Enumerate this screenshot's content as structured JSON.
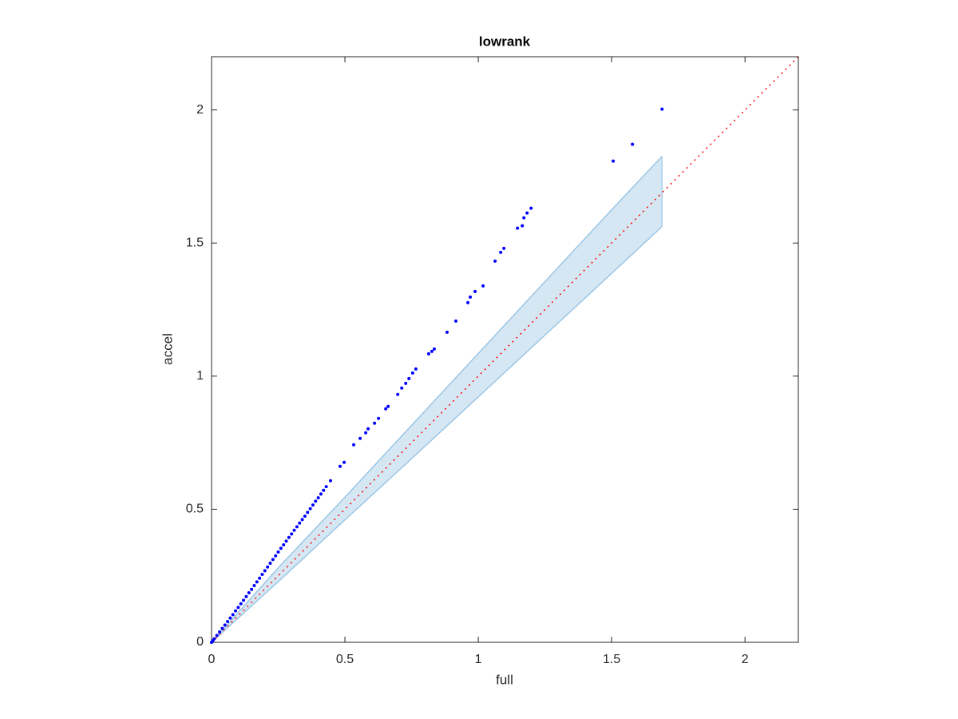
{
  "chart_data": {
    "type": "scatter",
    "title": "lowrank",
    "x_label": "full",
    "y_label": "accel",
    "xlim": [
      0,
      2.2
    ],
    "ylim": [
      0,
      2.2
    ],
    "xticks": [
      0,
      0.5,
      1,
      1.5,
      2
    ],
    "yticks": [
      0,
      0.5,
      1,
      1.5,
      2
    ],
    "box": true,
    "series": [
      {
        "color": "#0000ff",
        "x": [
          0,
          0.005,
          0.01,
          0.02,
          0.03,
          0.04,
          0.05,
          0.06,
          0.07,
          0.08,
          0.09,
          0.1,
          0.11,
          0.12,
          0.13,
          0.14,
          0.15,
          0.16,
          0.17,
          0.18,
          0.19,
          0.2,
          0.21,
          0.22,
          0.23,
          0.24,
          0.25,
          0.26,
          0.27,
          0.28,
          0.29,
          0.3,
          0.31,
          0.32,
          0.33,
          0.34,
          0.35,
          0.36,
          0.37,
          0.38,
          0.39,
          0.4,
          0.41,
          0.42,
          0.43,
          0.446,
          0.482,
          0.497,
          0.533,
          0.557,
          0.578,
          0.587,
          0.611,
          0.626,
          0.653,
          0.662,
          0.698,
          0.713,
          0.728,
          0.74,
          0.754,
          0.766,
          0.814,
          0.826,
          0.835,
          0.883,
          0.916,
          0.961,
          0.97,
          0.988,
          1.018,
          1.063,
          1.084,
          1.096,
          1.147,
          1.165,
          1.171,
          1.183,
          1.198,
          1.506,
          1.578,
          1.689
        ],
        "values": [
          0,
          0.006,
          0.013,
          0.026,
          0.039,
          0.052,
          0.065,
          0.078,
          0.091,
          0.104,
          0.118,
          0.131,
          0.145,
          0.158,
          0.172,
          0.186,
          0.199,
          0.213,
          0.227,
          0.241,
          0.255,
          0.269,
          0.283,
          0.297,
          0.311,
          0.325,
          0.339,
          0.353,
          0.366,
          0.38,
          0.394,
          0.407,
          0.421,
          0.434,
          0.448,
          0.461,
          0.474,
          0.488,
          0.502,
          0.516,
          0.53,
          0.543,
          0.557,
          0.571,
          0.585,
          0.607,
          0.661,
          0.676,
          0.742,
          0.766,
          0.787,
          0.802,
          0.823,
          0.841,
          0.877,
          0.886,
          0.931,
          0.955,
          0.973,
          0.991,
          1.012,
          1.027,
          1.084,
          1.093,
          1.102,
          1.165,
          1.207,
          1.276,
          1.297,
          1.318,
          1.339,
          1.432,
          1.465,
          1.48,
          1.556,
          1.565,
          1.595,
          1.613,
          1.631,
          1.808,
          1.871,
          2.003
        ]
      }
    ],
    "band": {
      "color": "#9ac6e4",
      "fill": "#d6e7f4",
      "x": [
        0,
        0.25,
        0.5,
        0.75,
        1,
        1.25,
        1.5,
        1.689
      ],
      "upper": [
        0,
        0.28,
        0.545,
        0.815,
        1.085,
        1.355,
        1.625,
        1.826
      ],
      "lower": [
        0,
        0.228,
        0.46,
        0.69,
        0.922,
        1.154,
        1.386,
        1.562
      ]
    },
    "reference_line": {
      "color": "#ff0000",
      "x": [
        0,
        2.2
      ],
      "y": [
        0,
        2.2
      ]
    }
  }
}
